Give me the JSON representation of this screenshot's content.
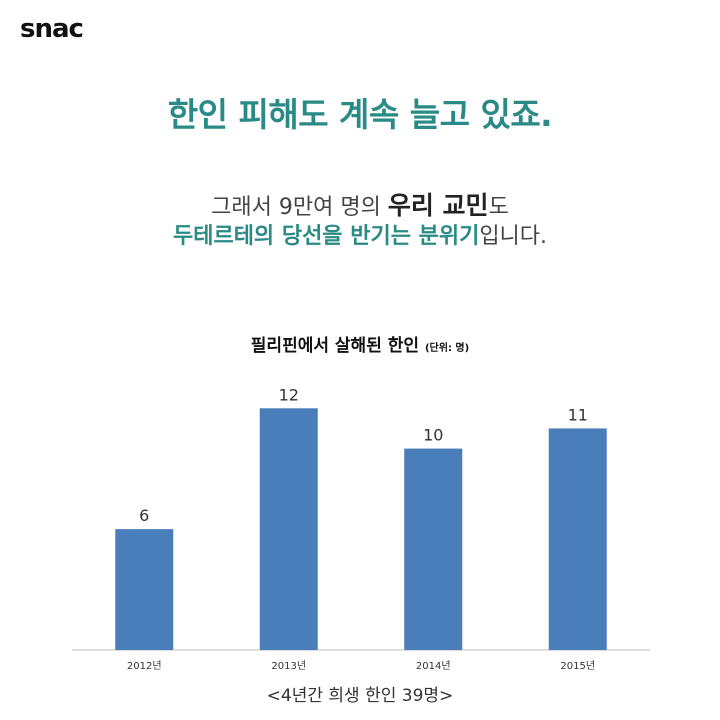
{
  "brand": "snac",
  "headline": "한인 피해도 계속 늘고 있죠.",
  "body": {
    "line1_pre": "그래서 9만여 명의 ",
    "line1_strong": "우리 교민",
    "line1_post": "도",
    "line2_accent": "두테르테의 당선을 반기는 분위기",
    "line2_post": "입니다."
  },
  "chart_data": {
    "type": "bar",
    "title": "필리핀에서 살해된 한인",
    "unit": "(단위: 명)",
    "categories": [
      "2012년",
      "2013년",
      "2014년",
      "2015년"
    ],
    "values": [
      6,
      12,
      10,
      11
    ],
    "ylim": [
      0,
      14
    ],
    "grid": false,
    "legend": "none",
    "bar_color": "#4a7ebb",
    "caption": "<4년간 희생 한인 39명>"
  }
}
